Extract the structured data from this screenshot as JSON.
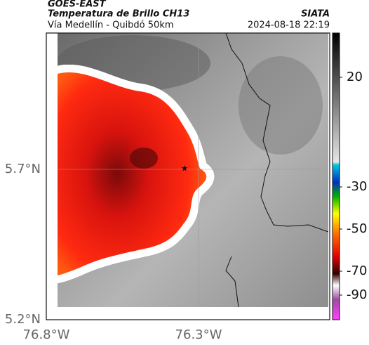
{
  "header": {
    "title": "GOES-EAST",
    "subtitle": "Temperatura de Brillo CH13",
    "location": "Vía Medellín - Quibdó 50km",
    "source": "SIATA",
    "datetime": "2024-08-18 22:19"
  },
  "map": {
    "y_labels": [
      "5.7°N",
      "5.2°N"
    ],
    "x_labels": [
      "76.8°W",
      "76.3°W"
    ]
  },
  "colorbar": {
    "ticks": [
      20,
      -30,
      -50,
      -70,
      -90
    ]
  }
}
